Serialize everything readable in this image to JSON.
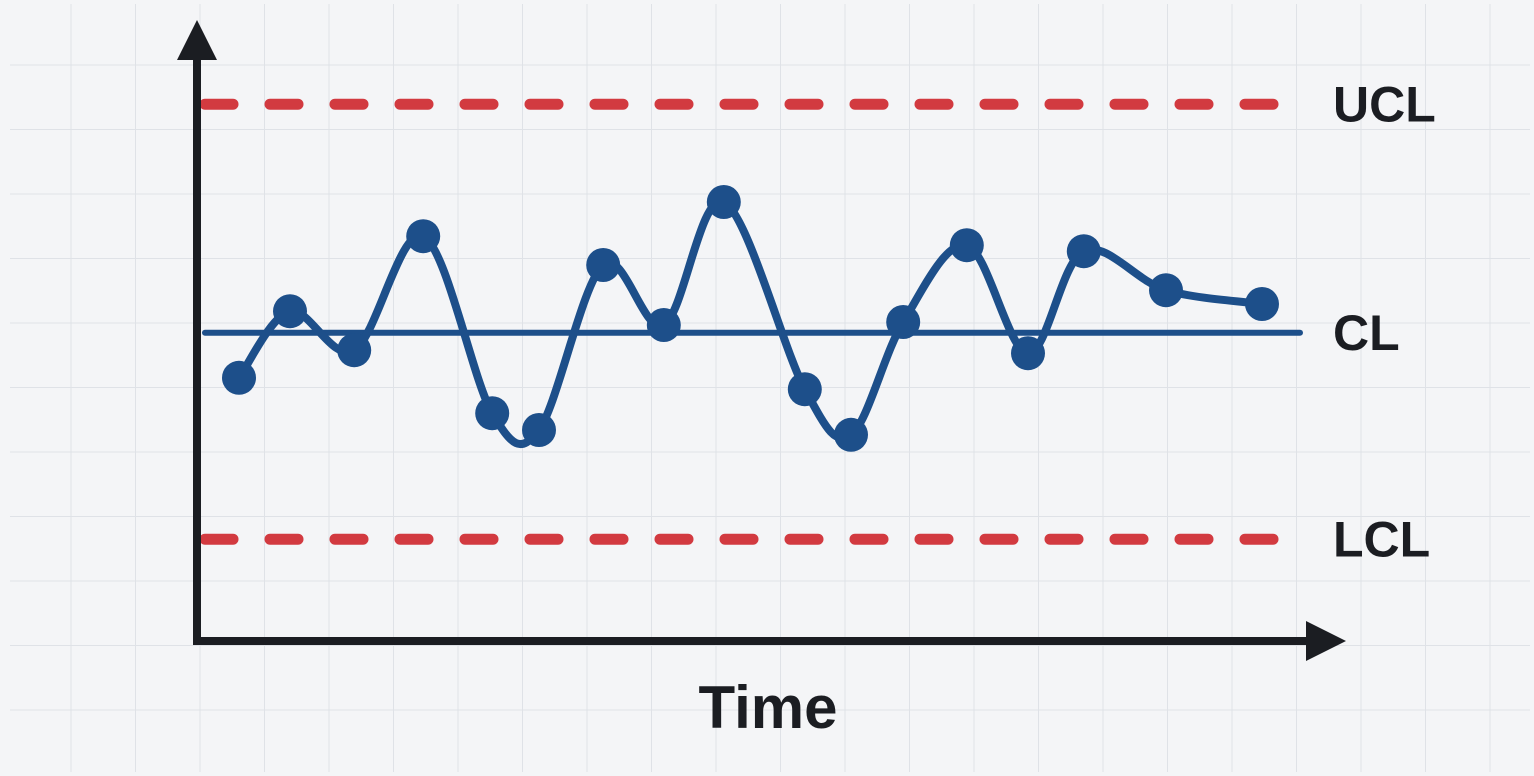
{
  "chart_data": {
    "type": "control",
    "x_label": "Time",
    "xlim": [
      0,
      19.05
    ],
    "ylim": [
      0,
      10
    ],
    "x": [
      0.7,
      1.55,
      2.62,
      3.77,
      4.92,
      5.7,
      6.77,
      7.78,
      8.78,
      10.13,
      10.9,
      11.77,
      12.83,
      13.85,
      14.78,
      16.15,
      17.75
    ],
    "values": [
      4.37,
      5.48,
      4.83,
      6.73,
      3.78,
      3.5,
      6.25,
      5.25,
      7.3,
      4.18,
      3.42,
      5.3,
      6.58,
      4.78,
      6.48,
      5.83,
      5.6
    ],
    "color": "#1d4f8a",
    "control_lines": [
      {
        "name": "UCL",
        "value": 8.93,
        "color": "#d23a40",
        "dashed": true
      },
      {
        "name": "CL",
        "value": 5.12,
        "color": "#1d4f8a",
        "dashed": false
      },
      {
        "name": "LCL",
        "value": 1.68,
        "color": "#d23a40",
        "dashed": true
      }
    ]
  }
}
